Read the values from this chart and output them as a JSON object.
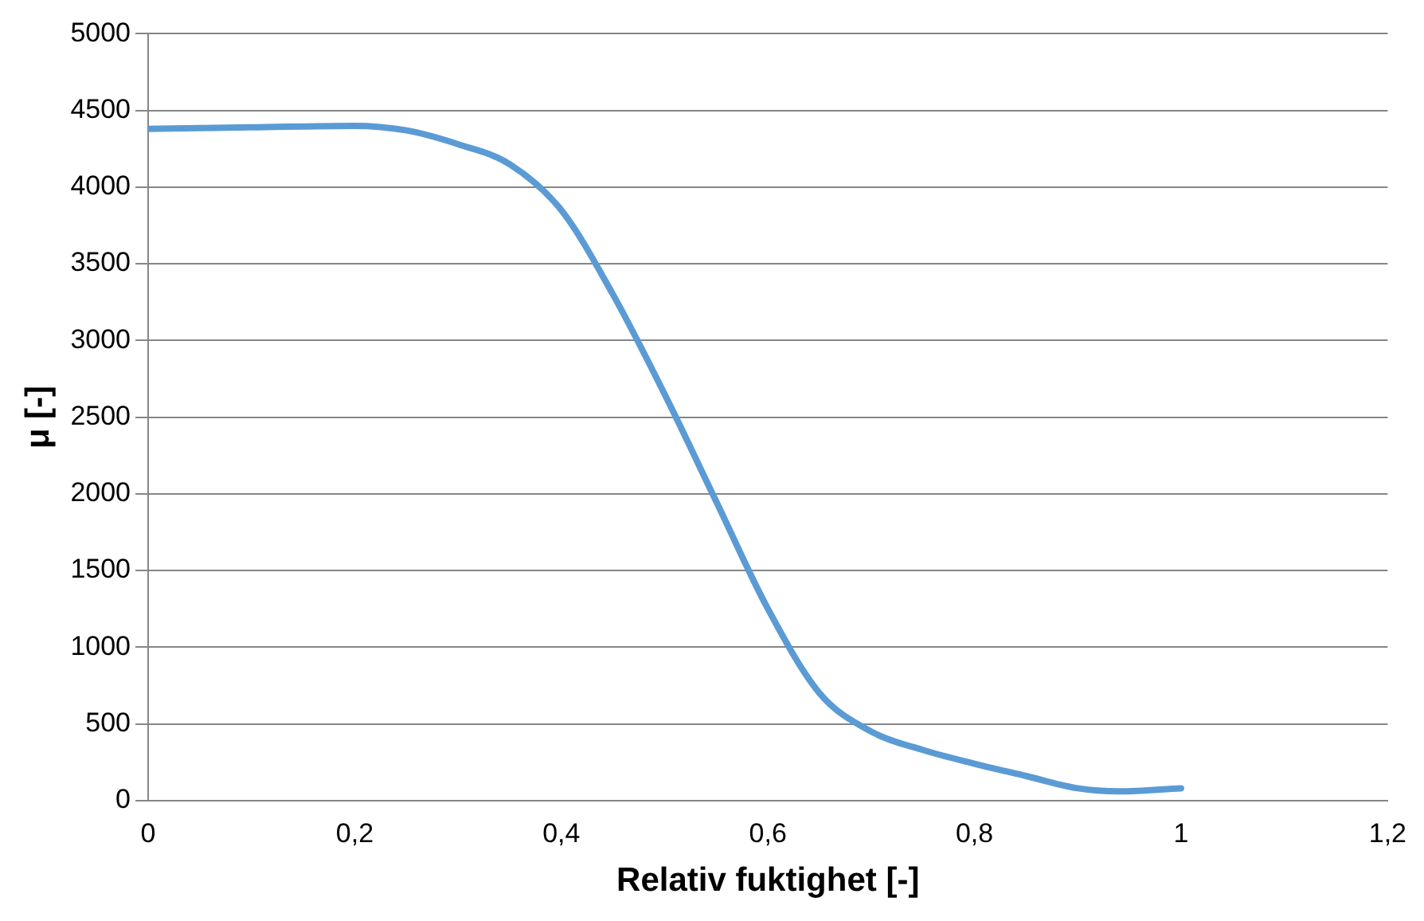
{
  "chart_data": {
    "type": "line",
    "xlabel": "Relativ fuktighet [-]",
    "ylabel": "μ [-]",
    "x": [
      0,
      0.1,
      0.2,
      0.25,
      0.3,
      0.35,
      0.4,
      0.45,
      0.5,
      0.55,
      0.6,
      0.65,
      0.7,
      0.75,
      0.8,
      0.85,
      0.9,
      0.94,
      1
    ],
    "series": [
      {
        "color": "#5b9bd5",
        "values": [
          4380,
          4390,
          4400,
          4370,
          4280,
          4150,
          3850,
          3300,
          2650,
          1950,
          1250,
          700,
          450,
          330,
          240,
          160,
          80,
          60,
          80
        ]
      }
    ],
    "xlim": [
      0,
      1.2
    ],
    "xticks": [
      0,
      {
        "value": 0.2,
        "label": "0,2"
      },
      {
        "value": 0.4,
        "label": "0,4"
      },
      {
        "value": 0.6,
        "label": "0,6"
      },
      {
        "value": 0.8,
        "label": "0,8"
      },
      1,
      {
        "value": 1.2,
        "label": "1,2"
      }
    ],
    "ylim": [
      0,
      5000
    ],
    "yticks": [
      0,
      500,
      1000,
      1500,
      2000,
      2500,
      3000,
      3500,
      4000,
      4500,
      5000
    ],
    "grid": "y",
    "legend": false,
    "marker": "none",
    "line_style": "solid"
  }
}
